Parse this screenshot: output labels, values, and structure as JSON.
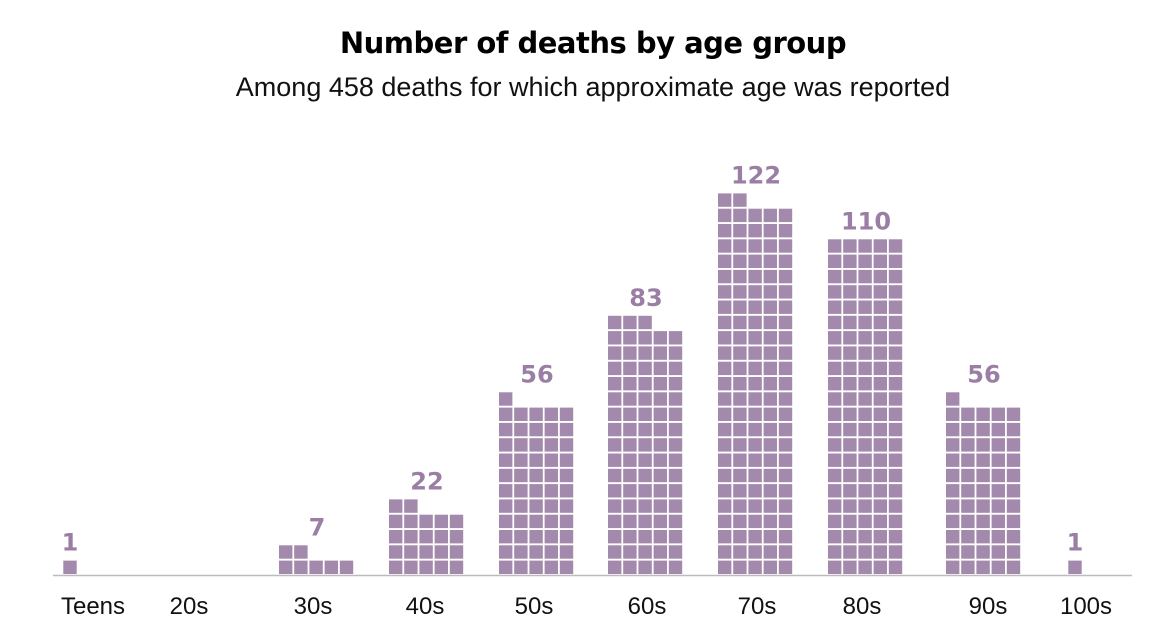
{
  "chart_data": {
    "type": "bar",
    "title": "Number of deaths by age group",
    "subtitle": "Among 458 deaths for which approximate age was reported",
    "categories": [
      "Teens",
      "20s",
      "30s",
      "40s",
      "50s",
      "60s",
      "70s",
      "80s",
      "90s",
      "100s"
    ],
    "values": [
      1,
      0,
      7,
      22,
      56,
      83,
      122,
      110,
      56,
      1
    ],
    "value_labels": [
      "1",
      "",
      "7",
      "22",
      "56",
      "83",
      "122",
      "110",
      "56",
      "1"
    ],
    "xlabel": "",
    "ylabel": "",
    "grid": false,
    "legend": "none",
    "unit_style": "waffle squares, 5 per row"
  },
  "colors": {
    "square": "#a389ac",
    "label": "#9a7ea4",
    "axis": "#bbbbbb",
    "text": "#111111"
  }
}
